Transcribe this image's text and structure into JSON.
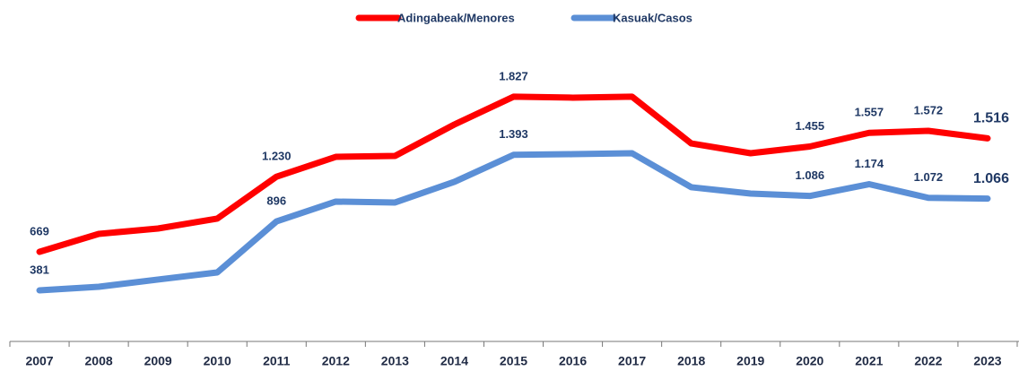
{
  "chart_data": {
    "type": "line",
    "categories": [
      "2007",
      "2008",
      "2009",
      "2010",
      "2011",
      "2012",
      "2013",
      "2014",
      "2015",
      "2016",
      "2017",
      "2018",
      "2019",
      "2020",
      "2021",
      "2022",
      "2023"
    ],
    "series": [
      {
        "name": "Adingabeak/Menores",
        "color": "#ff0000",
        "values": [
          669,
          803,
          843,
          917,
          1230,
          1378,
          1385,
          1619,
          1827,
          1820,
          1827,
          1478,
          1405,
          1455,
          1557,
          1572,
          1516
        ],
        "value_labels": [
          "669",
          null,
          null,
          null,
          "1.230",
          null,
          null,
          null,
          "1.827",
          null,
          null,
          null,
          null,
          "1.455",
          "1.557",
          "1.572",
          "1.516"
        ]
      },
      {
        "name": "Kasuak/Casos",
        "color": "#5b8fd6",
        "values": [
          381,
          408,
          462,
          515,
          896,
          1044,
          1037,
          1191,
          1393,
          1398,
          1405,
          1151,
          1104,
          1086,
          1174,
          1072,
          1066
        ],
        "value_labels": [
          "381",
          null,
          null,
          null,
          "896",
          null,
          null,
          null,
          "1.393",
          null,
          null,
          null,
          null,
          "1.086",
          "1.174",
          "1.072",
          "1.066"
        ]
      }
    ],
    "legend": "top"
  }
}
